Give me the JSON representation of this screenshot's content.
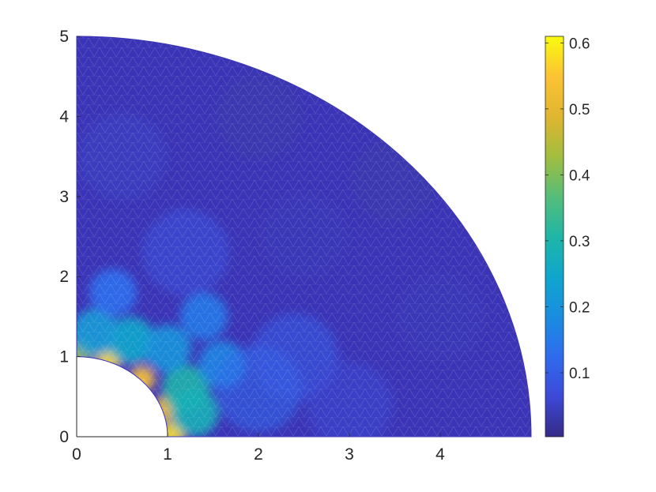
{
  "chart_data": {
    "type": "heatmap",
    "description_of_domain": "quarter annulus",
    "inner_radius": 1,
    "outer_radius": 5,
    "xlim": [
      0,
      5
    ],
    "ylim": [
      0,
      5
    ],
    "x_ticks": [
      "0",
      "1",
      "2",
      "3",
      "4"
    ],
    "y_ticks": [
      "0",
      "1",
      "2",
      "3",
      "4",
      "5"
    ],
    "colorbar": {
      "colormap": "parula",
      "range": [
        0.003,
        0.61
      ],
      "ticks": [
        "0.1",
        "0.2",
        "0.3",
        "0.4",
        "0.5",
        "0.6"
      ]
    },
    "field_samples": [
      {
        "x": 0.05,
        "y": 1.05,
        "v": 0.42
      },
      {
        "x": 0.35,
        "y": 0.97,
        "v": 0.58
      },
      {
        "x": 0.72,
        "y": 0.72,
        "v": 0.55
      },
      {
        "x": 0.97,
        "y": 0.35,
        "v": 0.52
      },
      {
        "x": 1.05,
        "y": 0.03,
        "v": 0.58
      },
      {
        "x": 1.2,
        "y": 0.6,
        "v": 0.3
      },
      {
        "x": 1.3,
        "y": 0.3,
        "v": 0.28
      },
      {
        "x": 0.6,
        "y": 1.2,
        "v": 0.25
      },
      {
        "x": 0.2,
        "y": 1.3,
        "v": 0.22
      },
      {
        "x": 1.0,
        "y": 1.1,
        "v": 0.2
      },
      {
        "x": 1.6,
        "y": 0.9,
        "v": 0.17
      },
      {
        "x": 1.4,
        "y": 1.5,
        "v": 0.15
      },
      {
        "x": 0.4,
        "y": 1.8,
        "v": 0.13
      },
      {
        "x": 2.0,
        "y": 0.6,
        "v": 0.12
      },
      {
        "x": 2.4,
        "y": 1.0,
        "v": 0.1
      },
      {
        "x": 1.2,
        "y": 2.3,
        "v": 0.08
      },
      {
        "x": 3.0,
        "y": 0.4,
        "v": 0.06
      },
      {
        "x": 2.5,
        "y": 2.5,
        "v": 0.04
      },
      {
        "x": 0.5,
        "y": 3.5,
        "v": 0.05
      },
      {
        "x": 4.0,
        "y": 1.5,
        "v": 0.04
      },
      {
        "x": 2.0,
        "y": 4.0,
        "v": 0.03
      },
      {
        "x": 3.5,
        "y": 3.2,
        "v": 0.03
      }
    ]
  }
}
